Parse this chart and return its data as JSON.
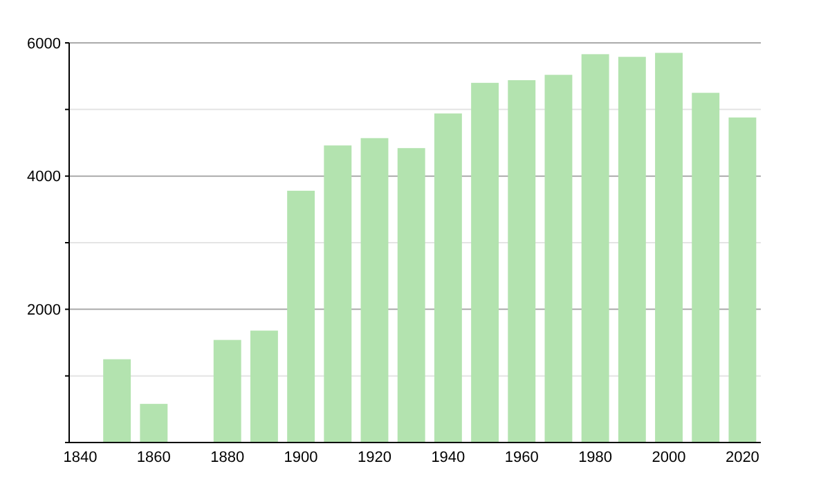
{
  "chart_data": {
    "type": "bar",
    "x": [
      1850,
      1860,
      1880,
      1890,
      1900,
      1910,
      1920,
      1930,
      1940,
      1950,
      1960,
      1970,
      1980,
      1990,
      2000,
      2010,
      2020
    ],
    "values": [
      1250,
      580,
      1540,
      1680,
      3780,
      4460,
      4570,
      4420,
      4940,
      5400,
      5440,
      5520,
      5830,
      5790,
      5850,
      5250,
      4880
    ],
    "color": "#b3e3af",
    "xlim": [
      1837,
      2025
    ],
    "xticks": [
      1840,
      1860,
      1880,
      1900,
      1920,
      1940,
      1960,
      1980,
      2000,
      2020
    ],
    "ylim": [
      0,
      6000
    ],
    "yticks": [
      {
        "value": 0,
        "label": null
      },
      {
        "value": 1000,
        "label": null
      },
      2000,
      {
        "value": 3000,
        "label": null
      },
      4000,
      {
        "value": 5000,
        "label": null
      },
      6000
    ],
    "grid": "y"
  }
}
